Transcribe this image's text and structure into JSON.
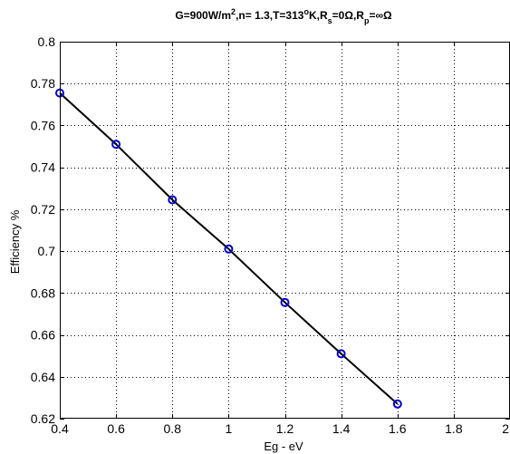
{
  "chart_data": {
    "type": "line",
    "title": {
      "parts": [
        {
          "t": "G=900W/m"
        },
        {
          "t": "2",
          "s": "sup"
        },
        {
          "t": ",n= 1.3,T=313"
        },
        {
          "t": "o",
          "s": "sup"
        },
        {
          "t": "K,R"
        },
        {
          "t": "s",
          "s": "sub"
        },
        {
          "t": "=0Ω,R"
        },
        {
          "t": "p",
          "s": "sub"
        },
        {
          "t": "=∞Ω"
        }
      ]
    },
    "xlabel": "Eg - eV",
    "ylabel": "Efficiency %",
    "xlim": [
      0.4,
      2.0
    ],
    "ylim": [
      0.62,
      0.8
    ],
    "xticks": [
      0.4,
      0.6,
      0.8,
      1.0,
      1.2,
      1.4,
      1.6,
      1.8,
      2.0
    ],
    "xtick_labels": [
      "0.4",
      "0.6",
      "0.8",
      "1",
      "1.2",
      "1.4",
      "1.6",
      "1.8",
      "2"
    ],
    "yticks": [
      0.62,
      0.64,
      0.66,
      0.68,
      0.7,
      0.72,
      0.74,
      0.76,
      0.78,
      0.8
    ],
    "ytick_labels": [
      "0.62",
      "0.64",
      "0.66",
      "0.68",
      "0.7",
      "0.72",
      "0.74",
      "0.76",
      "0.78",
      "0.8"
    ],
    "grid": true,
    "series": [
      {
        "x": [
          0.4,
          0.6,
          0.8,
          1.0,
          1.2,
          1.4,
          1.6
        ],
        "y": [
          0.7755,
          0.751,
          0.7245,
          0.701,
          0.6755,
          0.651,
          0.627
        ],
        "line_color": "#000000",
        "marker": "circle",
        "marker_color": "#0000cc"
      }
    ]
  }
}
